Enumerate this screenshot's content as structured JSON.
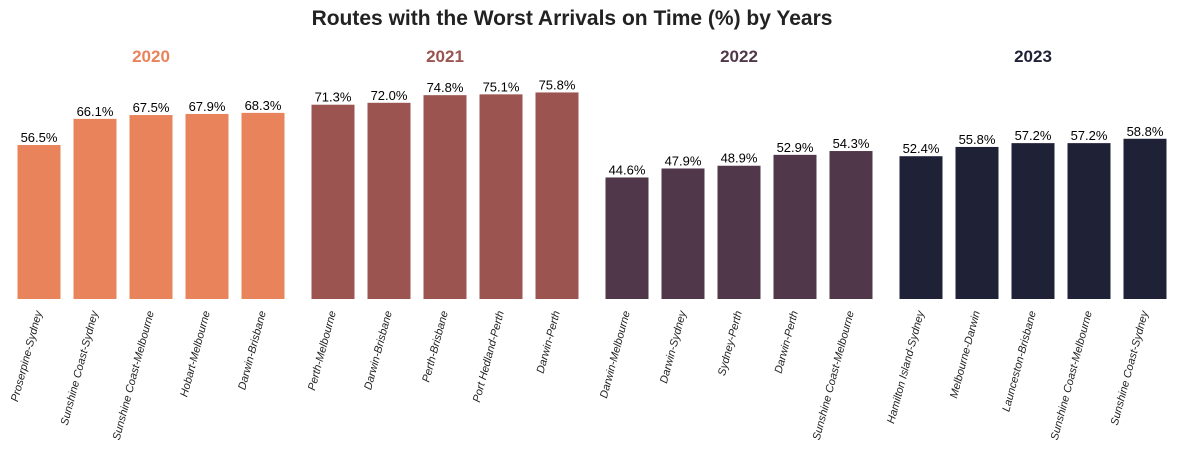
{
  "chart_data": {
    "type": "bar",
    "title": "Routes with the Worst Arrivals on Time (%) by Years",
    "value_format": "%",
    "ylim": [
      0,
      80
    ],
    "grid": false,
    "groups": [
      {
        "name": "2020",
        "color": "#E8835B",
        "categories": [
          "Proserpine-Sydney",
          "Sunshine Coast-Sydney",
          "Sunshine Coast-Melbourne",
          "Hobart-Melbourne",
          "Darwin-Brisbane"
        ],
        "values": [
          56.5,
          66.1,
          67.5,
          67.9,
          68.3
        ]
      },
      {
        "name": "2021",
        "color": "#9B5450",
        "categories": [
          "Perth-Melbourne",
          "Darwin-Brisbane",
          "Perth-Brisbane",
          "Port Hedland-Perth",
          "Darwin-Perth"
        ],
        "values": [
          71.3,
          72.0,
          74.8,
          75.1,
          75.8
        ]
      },
      {
        "name": "2022",
        "color": "#50384A",
        "categories": [
          "Darwin-Melbourne",
          "Darwin-Sydney",
          "Sydney-Perth",
          "Darwin-Perth",
          "Sunshine Coast-Melbourne"
        ],
        "values": [
          44.6,
          47.9,
          48.9,
          52.9,
          54.3
        ]
      },
      {
        "name": "2023",
        "color": "#1F2136",
        "categories": [
          "Hamilton Island-Sydney",
          "Melbourne-Darwin",
          "Launceston-Brisbane",
          "Sunshine Coast-Melbourne",
          "Sunshine Coast-Sydney"
        ],
        "values": [
          52.4,
          55.8,
          57.2,
          57.2,
          58.8
        ]
      }
    ]
  }
}
